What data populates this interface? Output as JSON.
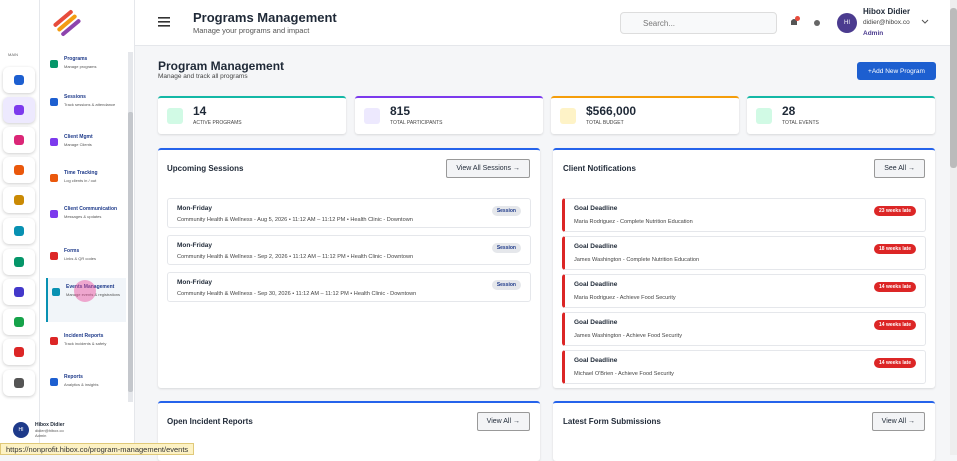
{
  "sidebar": {
    "section": "MAIN",
    "items": [
      {
        "title": "Programs",
        "subtitle": "Manage programs"
      },
      {
        "title": "Sessions",
        "subtitle": "Track sessions & attendance"
      },
      {
        "title": "Client Mgmt",
        "subtitle": "Manage Clients"
      },
      {
        "title": "Time Tracking",
        "subtitle": "Log clients in / out"
      },
      {
        "title": "Client Communication",
        "subtitle": "Messages & updates"
      },
      {
        "title": "Forms",
        "subtitle": "Links & QR codes"
      },
      {
        "title": "Events Management",
        "subtitle": "Manage events & registrations"
      },
      {
        "title": "Incident Reports",
        "subtitle": "Track incidents & safety"
      },
      {
        "title": "Reports",
        "subtitle": "Analytics & insights"
      }
    ],
    "user": {
      "initials": "HI",
      "name": "Hibox Didier",
      "email": "didier@hibox.co",
      "role": "Admin"
    }
  },
  "header": {
    "title": "Programs Management",
    "subtitle": "Manage your programs and impact",
    "search_placeholder": "Search...",
    "user": {
      "initials": "HI",
      "name": "Hibox Didier",
      "email": "didier@hibox.co",
      "role": "Admin"
    }
  },
  "page": {
    "title": "Program Management",
    "subtitle": "Manage and track all programs",
    "add_button": "+Add New Program"
  },
  "stats": [
    {
      "value": "14",
      "label": "ACTIVE PROGRAMS"
    },
    {
      "value": "815",
      "label": "TOTAL PARTICIPANTS"
    },
    {
      "value": "$566,000",
      "label": "TOTAL BUDGET"
    },
    {
      "value": "28",
      "label": "TOTAL EVENTS"
    }
  ],
  "upcoming_sessions": {
    "title": "Upcoming Sessions",
    "link": "View All Sessions →",
    "items": [
      {
        "day": "Mon-Friday",
        "detail": "Community Health & Wellness - Aug 5, 2026 • 11:12 AM – 11:12 PM • Health Clinic - Downtown",
        "badge": "Session"
      },
      {
        "day": "Mon-Friday",
        "detail": "Community Health & Wellness - Sep 2, 2026 • 11:12 AM – 11:12 PM • Health Clinic - Downtown",
        "badge": "Session"
      },
      {
        "day": "Mon-Friday",
        "detail": "Community Health & Wellness - Sep 30, 2026 • 11:12 AM – 11:12 PM • Health Clinic - Downtown",
        "badge": "Session"
      }
    ]
  },
  "client_notifications": {
    "title": "Client Notifications",
    "link": "See All →",
    "items": [
      {
        "title": "Goal Deadline",
        "detail": "Maria Rodriguez - Complete Nutrition Education",
        "badge": "23 weeks late"
      },
      {
        "title": "Goal Deadline",
        "detail": "James Washington - Complete Nutrition Education",
        "badge": "18 weeks late"
      },
      {
        "title": "Goal Deadline",
        "detail": "Maria Rodriguez - Achieve Food Security",
        "badge": "14 weeks late"
      },
      {
        "title": "Goal Deadline",
        "detail": "James Washington - Achieve Food Security",
        "badge": "14 weeks late"
      },
      {
        "title": "Goal Deadline",
        "detail": "Michael O'Brien - Achieve Food Security",
        "badge": "14 weeks late"
      }
    ]
  },
  "incident_reports": {
    "title": "Open Incident Reports",
    "link": "View All →"
  },
  "form_submissions": {
    "title": "Latest Form Submissions",
    "link": "View All →"
  },
  "status_url": "https://nonprofit.hibox.co/program-management/events"
}
